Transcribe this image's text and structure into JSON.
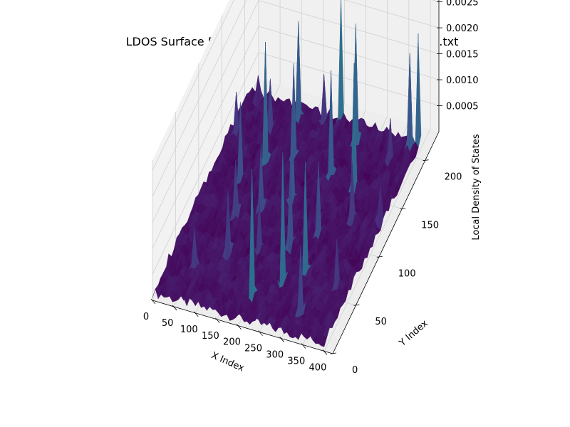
{
  "chart_data": {
    "type": "surface3d",
    "title": "LDOS Surface Plot - local_density_of_states_for_level_4.txt",
    "xlabel": "X Index",
    "ylabel": "Y Index",
    "zlabel": "Local Density of States",
    "xlim": [
      0,
      420
    ],
    "ylim": [
      0,
      230
    ],
    "zlim": [
      0,
      0.0027
    ],
    "x_ticks": [
      0,
      50,
      100,
      150,
      200,
      250,
      300,
      350,
      400
    ],
    "x_tick_labels": [
      "0",
      "50",
      "100",
      "150",
      "200",
      "250",
      "300",
      "350",
      "400"
    ],
    "y_ticks": [
      0,
      50,
      100,
      150,
      200
    ],
    "y_tick_labels": [
      "0",
      "50",
      "100",
      "150",
      "200"
    ],
    "z_ticks": [
      0.0005,
      0.001,
      0.0015,
      0.002,
      0.0025
    ],
    "z_tick_labels": [
      "0.0005",
      "0.0010",
      "0.0015",
      "0.0020",
      "0.0025"
    ],
    "colormap": "viridis",
    "grid": true,
    "surface": {
      "x_range": [
        0,
        400
      ],
      "y_range": [
        0,
        210
      ],
      "baseline_z_range": [
        5e-05,
        0.00025
      ],
      "peaks": [
        {
          "x": 10,
          "y": 170,
          "z": 0.0009
        },
        {
          "x": 25,
          "y": 205,
          "z": 0.0006
        },
        {
          "x": 45,
          "y": 150,
          "z": 0.0005
        },
        {
          "x": 60,
          "y": 35,
          "z": 0.0009
        },
        {
          "x": 65,
          "y": 130,
          "z": 0.0016
        },
        {
          "x": 80,
          "y": 180,
          "z": 0.0011
        },
        {
          "x": 95,
          "y": 95,
          "z": 0.0012
        },
        {
          "x": 100,
          "y": 150,
          "z": 0.0024
        },
        {
          "x": 115,
          "y": 60,
          "z": 0.0013
        },
        {
          "x": 125,
          "y": 200,
          "z": 0.002
        },
        {
          "x": 140,
          "y": 105,
          "z": 0.0014
        },
        {
          "x": 155,
          "y": 165,
          "z": 0.0019
        },
        {
          "x": 170,
          "y": 70,
          "z": 0.0011
        },
        {
          "x": 180,
          "y": 205,
          "z": 0.001
        },
        {
          "x": 195,
          "y": 120,
          "z": 0.0019
        },
        {
          "x": 205,
          "y": 25,
          "z": 0.0026
        },
        {
          "x": 215,
          "y": 210,
          "z": 0.0025
        },
        {
          "x": 230,
          "y": 80,
          "z": 0.0017
        },
        {
          "x": 245,
          "y": 160,
          "z": 0.0021
        },
        {
          "x": 255,
          "y": 45,
          "z": 0.0026
        },
        {
          "x": 265,
          "y": 195,
          "z": 0.0024
        },
        {
          "x": 280,
          "y": 100,
          "z": 0.0015
        },
        {
          "x": 295,
          "y": 60,
          "z": 0.0023
        },
        {
          "x": 305,
          "y": 150,
          "z": 0.0025
        },
        {
          "x": 320,
          "y": 25,
          "z": 0.0014
        },
        {
          "x": 335,
          "y": 120,
          "z": 0.0012
        },
        {
          "x": 350,
          "y": 185,
          "z": 0.0009
        },
        {
          "x": 365,
          "y": 60,
          "z": 0.001
        },
        {
          "x": 380,
          "y": 205,
          "z": 0.0019
        },
        {
          "x": 395,
          "y": 210,
          "z": 0.0022
        },
        {
          "x": 390,
          "y": 130,
          "z": 0.0008
        }
      ]
    }
  }
}
